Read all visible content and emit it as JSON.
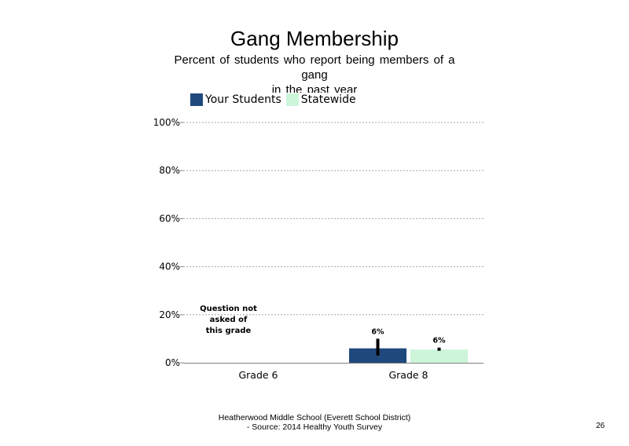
{
  "page_number": "26",
  "footer": {
    "line1": "Heatherwood Middle School (Everett School District)",
    "line2": "- Source: 2014 Healthy Youth Survey"
  },
  "chart_data": {
    "type": "bar",
    "title": "Gang Membership",
    "subtitle_lines": [
      "Percent of students who report being members of a",
      "gang",
      "in the past year"
    ],
    "categories": [
      "Grade 6",
      "Grade 8"
    ],
    "series": [
      {
        "name": "Your Students",
        "color": "#1f497d",
        "values": [
          null,
          6
        ],
        "error": [
          null,
          [
            3,
            10
          ]
        ],
        "labels": [
          "",
          "6%"
        ]
      },
      {
        "name": "Statewide",
        "color": "#ccf5da",
        "values": [
          null,
          5.5
        ],
        "error": [
          null,
          [
            5,
            6.3
          ]
        ],
        "labels": [
          "",
          "6%"
        ]
      }
    ],
    "annotations": [
      {
        "category": "Grade 6",
        "lines": [
          "Question not",
          "asked of",
          "this grade"
        ]
      }
    ],
    "y_ticks": [
      "0%",
      "20%",
      "40%",
      "60%",
      "80%",
      "100%"
    ],
    "ylim": [
      0,
      100
    ],
    "grid": true,
    "legend_position": "top-left"
  }
}
